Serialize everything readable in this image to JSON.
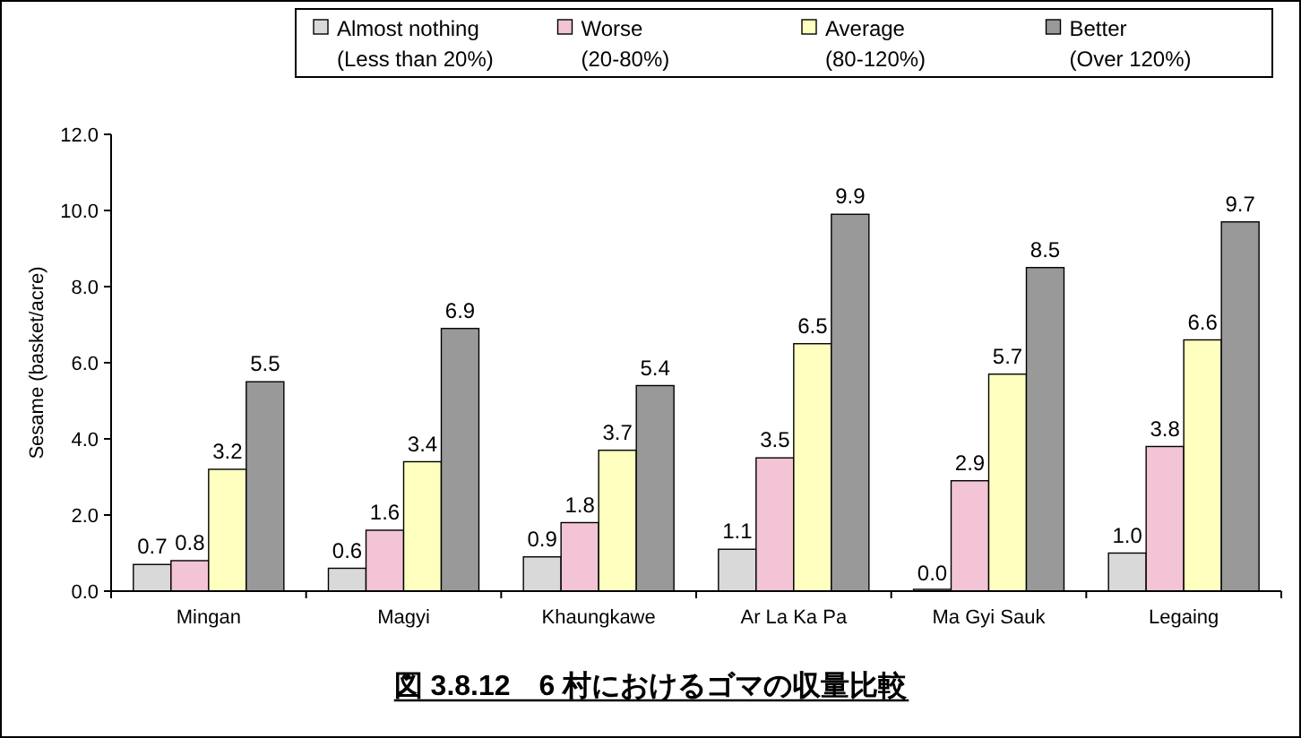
{
  "chart_data": {
    "type": "bar",
    "title": "図 3.8.12　6 村におけるゴマの収量比較",
    "ylabel": "Sesame (basket/acre)",
    "categories": [
      "Mingan",
      "Magyi",
      "Khaungkawe",
      "Ar La Ka Pa",
      "Ma Gyi Sauk",
      "Legaing"
    ],
    "series": [
      {
        "name": "Almost nothing\n(Less than 20%)",
        "color": "#d9d9d9",
        "values": [
          0.7,
          0.6,
          0.9,
          1.1,
          0.0,
          1.0
        ],
        "value_labels": [
          "0.7",
          "0.6",
          "0.9",
          "1.1",
          "0.0",
          "1.0"
        ]
      },
      {
        "name": "Worse\n(20-80%)",
        "color": "#f2c4d6",
        "values": [
          0.8,
          1.6,
          1.8,
          3.5,
          2.9,
          3.8
        ],
        "value_labels": [
          "0.8",
          "1.6",
          "1.8",
          "3.5",
          "2.9",
          "3.8"
        ]
      },
      {
        "name": "Average\n(80-120%)",
        "color": "#ffffc0",
        "values": [
          3.2,
          3.4,
          3.7,
          6.5,
          5.7,
          6.6
        ],
        "value_labels": [
          "3.2",
          "3.4",
          "3.7",
          "6.5",
          "5.7",
          "6.6"
        ]
      },
      {
        "name": "Better\n(Over 120%)",
        "color": "#999999",
        "values": [
          5.5,
          6.9,
          5.4,
          9.9,
          8.5,
          9.7
        ],
        "value_labels": [
          "5.5",
          "6.9",
          "5.4",
          "9.9",
          "8.5",
          "9.7"
        ]
      }
    ],
    "ylim": [
      0,
      12
    ],
    "yticks": [
      {
        "value": 0,
        "label": "0.0"
      },
      {
        "value": 2,
        "label": "2.0"
      },
      {
        "value": 4,
        "label": "4.0"
      },
      {
        "value": 6,
        "label": "6.0"
      },
      {
        "value": 8,
        "label": "8.0"
      },
      {
        "value": 10,
        "label": "10.0"
      },
      {
        "value": 12,
        "label": "12.0"
      }
    ],
    "grid": false,
    "legend": "top"
  }
}
